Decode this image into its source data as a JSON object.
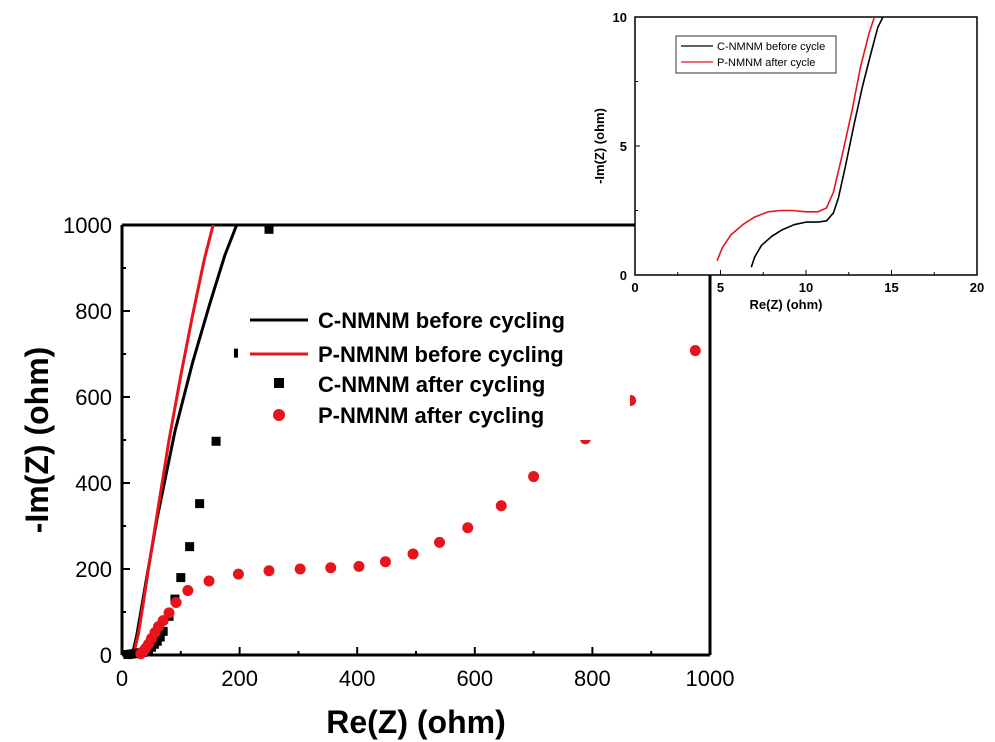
{
  "colors": {
    "black": "#000000",
    "red": "#e8141c"
  },
  "chart_data": [
    {
      "type": "scatter",
      "panel": "main",
      "xlabel": "Re(Z) (ohm)",
      "ylabel": "-Im(Z) (ohm)",
      "xlim": [
        0,
        1000
      ],
      "ylim": [
        0,
        1000
      ],
      "xticks": [
        "0",
        "200",
        "400",
        "600",
        "800",
        "1000"
      ],
      "yticks": [
        "0",
        "200",
        "400",
        "600",
        "800",
        "1000"
      ],
      "legend_position": "center",
      "series": [
        {
          "name": "C-NMNM before cycling",
          "style": "line",
          "color": "#000000",
          "x": [
            15,
            20,
            25,
            32,
            42,
            60,
            90,
            120,
            150,
            175,
            195
          ],
          "y": [
            0,
            15,
            45,
            100,
            180,
            320,
            520,
            680,
            820,
            930,
            1000
          ]
        },
        {
          "name": "P-NMNM before cycling",
          "style": "line",
          "color": "#e8141c",
          "x": [
            18,
            22,
            28,
            35,
            45,
            60,
            80,
            100,
            120,
            140,
            155
          ],
          "y": [
            0,
            15,
            50,
            110,
            200,
            330,
            500,
            650,
            790,
            920,
            1000
          ]
        },
        {
          "name": "C-NMNM after cycling",
          "style": "marker-square",
          "color": "#000000",
          "x": [
            10,
            15,
            20,
            25,
            30,
            35,
            40,
            45,
            50,
            55,
            60,
            65,
            70,
            80,
            90,
            100,
            115,
            132,
            160,
            198,
            250
          ],
          "y": [
            1,
            2,
            3,
            4,
            5,
            6,
            8,
            12,
            18,
            25,
            32,
            42,
            55,
            90,
            130,
            180,
            252,
            352,
            497,
            702,
            990
          ]
        },
        {
          "name": "P-NMNM after cycling",
          "style": "marker-circle",
          "color": "#e8141c",
          "x": [
            32,
            36,
            40,
            45,
            50,
            56,
            62,
            70,
            80,
            92,
            112,
            148,
            198,
            250,
            303,
            355,
            403,
            448,
            495,
            540,
            588,
            645,
            700,
            788,
            865,
            975
          ],
          "y": [
            3,
            8,
            15,
            25,
            38,
            52,
            66,
            80,
            98,
            122,
            150,
            172,
            188,
            196,
            200,
            203,
            206,
            217,
            235,
            262,
            296,
            347,
            415,
            503,
            592,
            708
          ]
        }
      ]
    },
    {
      "type": "line",
      "panel": "inset",
      "xlabel": "Re(Z) (ohm)",
      "ylabel": "-Im(Z) (ohm)",
      "xlim": [
        0,
        20
      ],
      "ylim": [
        0,
        10
      ],
      "xticks": [
        "0",
        "5",
        "10",
        "15",
        "20"
      ],
      "yticks": [
        "0",
        "5",
        "10"
      ],
      "legend_position": "top-left",
      "series": [
        {
          "name": "C-NMNM before cycle",
          "color": "#000000",
          "x": [
            6.8,
            7.0,
            7.4,
            8.0,
            8.6,
            9.3,
            10.0,
            10.7,
            11.2,
            11.6,
            11.9,
            12.3,
            12.8,
            13.3,
            13.8,
            14.2,
            14.5
          ],
          "y": [
            0.3,
            0.7,
            1.15,
            1.5,
            1.75,
            1.95,
            2.05,
            2.05,
            2.1,
            2.4,
            3.0,
            4.2,
            5.8,
            7.3,
            8.6,
            9.6,
            10.0
          ]
        },
        {
          "name": "P-NMNM after cycle",
          "color": "#e8141c",
          "x": [
            4.8,
            5.1,
            5.6,
            6.3,
            7.0,
            7.8,
            8.5,
            9.2,
            10.0,
            10.7,
            11.2,
            11.6,
            12.1,
            12.7,
            13.2,
            13.7,
            14.0
          ],
          "y": [
            0.55,
            1.05,
            1.55,
            1.95,
            2.25,
            2.45,
            2.5,
            2.5,
            2.45,
            2.45,
            2.6,
            3.2,
            4.6,
            6.4,
            8.1,
            9.4,
            10.0
          ]
        }
      ]
    }
  ]
}
